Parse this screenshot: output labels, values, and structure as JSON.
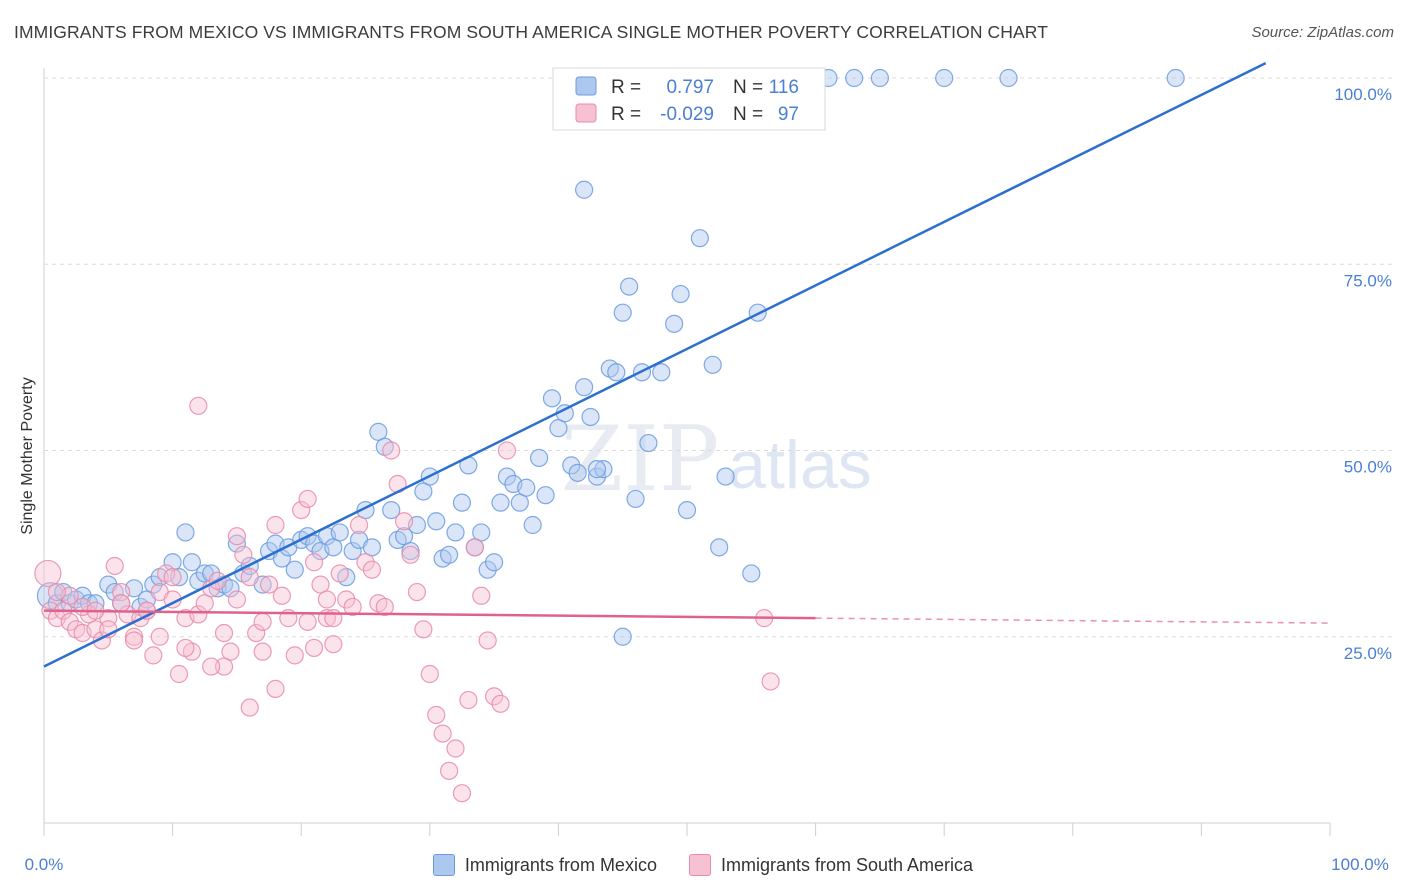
{
  "title": "IMMIGRANTS FROM MEXICO VS IMMIGRANTS FROM SOUTH AMERICA SINGLE MOTHER POVERTY CORRELATION CHART",
  "source": "Source: ZipAtlas.com",
  "watermark": {
    "zip": "ZIP",
    "atlas": "atlas"
  },
  "colors": {
    "mexico": "#6a9be0",
    "mexico_fill": "#adc8ee",
    "mexico_line": "#2c6fcf",
    "south_america": "#e98aa9",
    "south_america_fill": "#f6c1d2",
    "south_america_line": "#e0628c",
    "axis_text": "#4a7fd4",
    "grid": "#dcdcdc"
  },
  "legend_stats": [
    {
      "series": "Immigrants from Mexico",
      "r_label": "R =",
      "r_value": "0.797",
      "n_label": "N =",
      "n_value": "116"
    },
    {
      "series": "Immigrants from South America",
      "r_label": "R =",
      "r_value": "-0.029",
      "n_label": "N =",
      "n_value": "97"
    }
  ],
  "chart_data": {
    "type": "scatter",
    "ylabel": "Single Mother Poverty",
    "xlim": [
      0,
      100
    ],
    "ylim": [
      0,
      100
    ],
    "x_tick_labels": [
      "0.0%",
      "100.0%"
    ],
    "y_tick_labels": [
      "25.0%",
      "50.0%",
      "75.0%",
      "100.0%"
    ],
    "y_ticks": [
      25,
      50,
      75,
      100
    ],
    "grid": true,
    "legend_position": "bottom",
    "series": [
      {
        "name": "Immigrants from Mexico",
        "trend": {
          "x": [
            0,
            95
          ],
          "y": [
            21,
            102
          ]
        },
        "points": [
          [
            0.5,
            30.5
          ],
          [
            1.0,
            29.5
          ],
          [
            1.5,
            31
          ],
          [
            2,
            29.5
          ],
          [
            2.5,
            30
          ],
          [
            3,
            30.5
          ],
          [
            3.5,
            29.5
          ],
          [
            4,
            29.5
          ],
          [
            5,
            32
          ],
          [
            5.5,
            31
          ],
          [
            6,
            29.5
          ],
          [
            7,
            31.5
          ],
          [
            7.5,
            29
          ],
          [
            8,
            30
          ],
          [
            8.5,
            32
          ],
          [
            9,
            33
          ],
          [
            10,
            35
          ],
          [
            10.5,
            33
          ],
          [
            11,
            39
          ],
          [
            11.5,
            35
          ],
          [
            12,
            32.5
          ],
          [
            12.5,
            33.5
          ],
          [
            13,
            33.5
          ],
          [
            13.5,
            31.5
          ],
          [
            14,
            32
          ],
          [
            14.5,
            31.5
          ],
          [
            15,
            37.5
          ],
          [
            15.5,
            33.5
          ],
          [
            16,
            34.5
          ],
          [
            17,
            32
          ],
          [
            17.5,
            36.5
          ],
          [
            18,
            37.5
          ],
          [
            18.5,
            35.5
          ],
          [
            19,
            37
          ],
          [
            19.5,
            34
          ],
          [
            20,
            38
          ],
          [
            20.5,
            38.5
          ],
          [
            21,
            37.5
          ],
          [
            21.5,
            36.5
          ],
          [
            22,
            38.5
          ],
          [
            22.5,
            37
          ],
          [
            23,
            39
          ],
          [
            23.5,
            33
          ],
          [
            24,
            36.5
          ],
          [
            24.5,
            38
          ],
          [
            25,
            42
          ],
          [
            25.5,
            37
          ],
          [
            26,
            52.5
          ],
          [
            26.5,
            50.5
          ],
          [
            27,
            42
          ],
          [
            27.5,
            38
          ],
          [
            28,
            38.5
          ],
          [
            28.5,
            36.5
          ],
          [
            29,
            40
          ],
          [
            29.5,
            44.5
          ],
          [
            30,
            46.5
          ],
          [
            30.5,
            40.5
          ],
          [
            31,
            35.5
          ],
          [
            31.5,
            36
          ],
          [
            32,
            39
          ],
          [
            32.5,
            43
          ],
          [
            33,
            48
          ],
          [
            33.5,
            37
          ],
          [
            34,
            39
          ],
          [
            34.5,
            34
          ],
          [
            35,
            35
          ],
          [
            35.5,
            43
          ],
          [
            36,
            46.5
          ],
          [
            36.5,
            45.5
          ],
          [
            37,
            43
          ],
          [
            37.5,
            45
          ],
          [
            38,
            40
          ],
          [
            38.5,
            49
          ],
          [
            39,
            44
          ],
          [
            39.5,
            57
          ],
          [
            40,
            53
          ],
          [
            40.5,
            55
          ],
          [
            41,
            48
          ],
          [
            41.5,
            47
          ],
          [
            42,
            58.5
          ],
          [
            42.5,
            54.5
          ],
          [
            43,
            46.5
          ],
          [
            43.5,
            47.5
          ],
          [
            44,
            61
          ],
          [
            44.5,
            60.5
          ],
          [
            45,
            68.5
          ],
          [
            45.5,
            72
          ],
          [
            46,
            43.5
          ],
          [
            46.5,
            60.5
          ],
          [
            47,
            51
          ],
          [
            48,
            60.5
          ],
          [
            49,
            67
          ],
          [
            49.5,
            71
          ],
          [
            50,
            42
          ],
          [
            51,
            78.5
          ],
          [
            52,
            61.5
          ],
          [
            52.5,
            37
          ],
          [
            53,
            46.5
          ],
          [
            55,
            33.5
          ],
          [
            55.5,
            68.5
          ],
          [
            42,
            85
          ],
          [
            43,
            47.5
          ],
          [
            54,
            100
          ],
          [
            55,
            100
          ],
          [
            60,
            100
          ],
          [
            61,
            100
          ],
          [
            63,
            100
          ],
          [
            65,
            100
          ],
          [
            70,
            100
          ],
          [
            75,
            100
          ],
          [
            88,
            100
          ],
          [
            45,
            25
          ]
        ]
      },
      {
        "name": "Immigrants from South America",
        "trend": {
          "x": [
            0,
            60
          ],
          "y": [
            28.5,
            27.5
          ]
        },
        "points": [
          [
            0.3,
            33.5
          ],
          [
            0.5,
            28.5
          ],
          [
            1,
            27.5
          ],
          [
            1.5,
            28.5
          ],
          [
            2,
            27
          ],
          [
            2.5,
            26
          ],
          [
            3,
            25.5
          ],
          [
            3.5,
            28
          ],
          [
            4,
            26
          ],
          [
            4.5,
            24.5
          ],
          [
            5,
            27.5
          ],
          [
            5.5,
            34.5
          ],
          [
            6,
            31
          ],
          [
            6.5,
            28
          ],
          [
            7,
            25
          ],
          [
            7.5,
            27.5
          ],
          [
            8,
            28.5
          ],
          [
            8.5,
            22.5
          ],
          [
            9,
            31
          ],
          [
            9.5,
            33.5
          ],
          [
            10,
            30
          ],
          [
            10.5,
            20
          ],
          [
            11,
            27.5
          ],
          [
            11.5,
            23
          ],
          [
            12,
            28
          ],
          [
            12.5,
            29.5
          ],
          [
            13,
            31.5
          ],
          [
            13.5,
            32.5
          ],
          [
            14,
            25.5
          ],
          [
            14.5,
            23
          ],
          [
            15,
            38.5
          ],
          [
            15.5,
            36
          ],
          [
            16,
            33
          ],
          [
            16.5,
            25.5
          ],
          [
            17,
            23
          ],
          [
            17.5,
            32
          ],
          [
            18,
            40
          ],
          [
            18.5,
            30.5
          ],
          [
            19,
            27.5
          ],
          [
            19.5,
            22.5
          ],
          [
            20,
            42
          ],
          [
            20.5,
            43.5
          ],
          [
            21,
            35
          ],
          [
            21.5,
            32
          ],
          [
            22,
            27.5
          ],
          [
            22.5,
            24
          ],
          [
            23,
            33.5
          ],
          [
            23.5,
            30
          ],
          [
            24,
            29
          ],
          [
            24.5,
            40
          ],
          [
            25,
            35
          ],
          [
            25.5,
            34
          ],
          [
            26,
            29.5
          ],
          [
            26.5,
            29
          ],
          [
            27,
            50
          ],
          [
            27.5,
            45.5
          ],
          [
            28,
            40.5
          ],
          [
            28.5,
            36
          ],
          [
            29,
            31
          ],
          [
            29.5,
            26
          ],
          [
            30,
            20
          ],
          [
            30.5,
            14.5
          ],
          [
            31,
            12
          ],
          [
            31.5,
            7
          ],
          [
            32,
            10
          ],
          [
            32.5,
            4
          ],
          [
            33,
            16.5
          ],
          [
            33.5,
            37
          ],
          [
            34,
            30.5
          ],
          [
            34.5,
            24.5
          ],
          [
            35,
            17
          ],
          [
            35.5,
            16
          ],
          [
            36,
            50
          ],
          [
            12,
            56
          ],
          [
            14,
            21
          ],
          [
            16,
            15.5
          ],
          [
            18,
            18
          ],
          [
            20.5,
            27
          ],
          [
            21,
            23.5
          ],
          [
            22,
            30
          ],
          [
            22.5,
            27.5
          ],
          [
            9,
            25
          ],
          [
            7,
            24.5
          ],
          [
            5,
            26
          ],
          [
            3,
            29
          ],
          [
            2,
            30.5
          ],
          [
            1,
            31
          ],
          [
            4,
            28.5
          ],
          [
            6,
            29.5
          ],
          [
            8,
            28.5
          ],
          [
            10,
            33
          ],
          [
            11,
            23.5
          ],
          [
            13,
            21
          ],
          [
            15,
            30
          ],
          [
            17,
            27
          ],
          [
            56,
            27.5
          ],
          [
            56.5,
            19
          ]
        ]
      }
    ]
  }
}
